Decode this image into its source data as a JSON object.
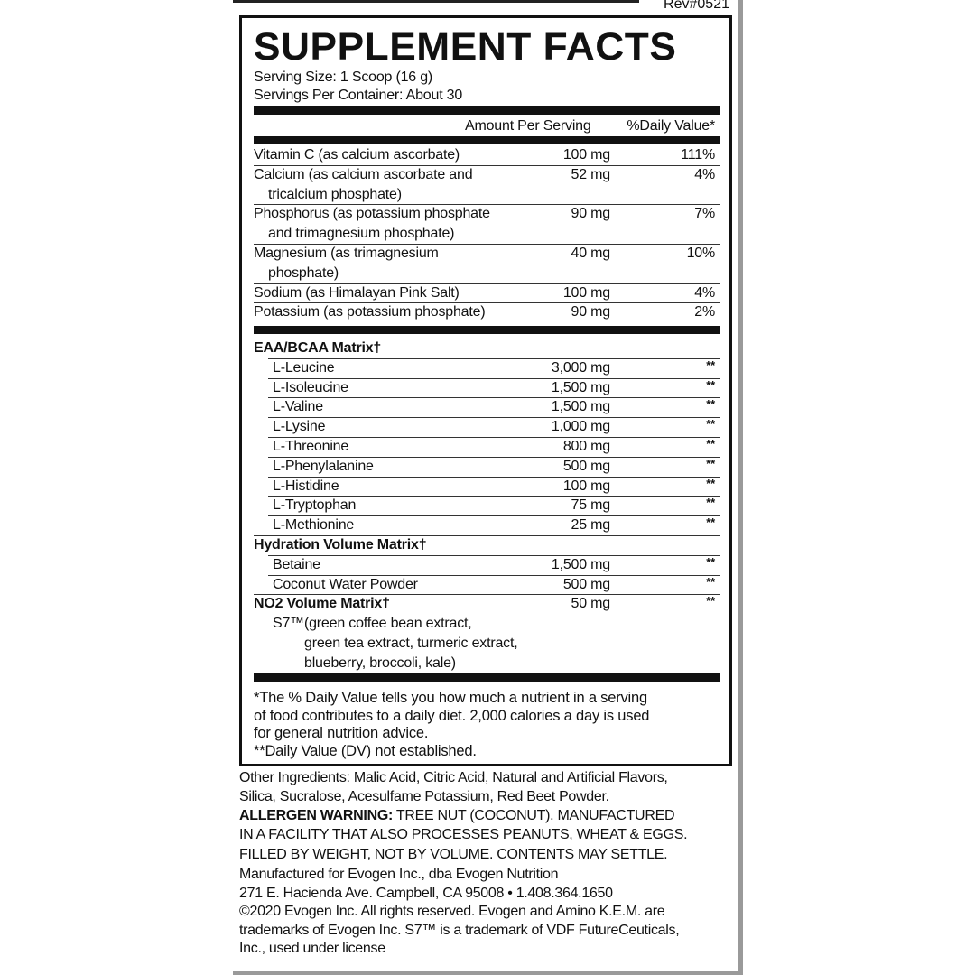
{
  "rev": "Rev#0521",
  "title": "SUPPLEMENT FACTS",
  "serving_size": "Serving Size: 1 Scoop (16 g)",
  "servings_per_container": "Servings Per Container: About 30",
  "header": {
    "amount": "Amount Per Serving",
    "dv": "%Daily Value*"
  },
  "nutrients": [
    {
      "name": [
        "Vitamin C (as calcium ascorbate)"
      ],
      "amount": "100 mg",
      "dv": "111%"
    },
    {
      "name": [
        "Calcium (as calcium ascorbate and",
        "tricalcium phosphate)"
      ],
      "amount": "52 mg",
      "dv": "4%"
    },
    {
      "name": [
        "Phosphorus (as potassium phosphate",
        "and trimagnesium phosphate)"
      ],
      "amount": "90 mg",
      "dv": "7%"
    },
    {
      "name": [
        "Magnesium (as trimagnesium",
        "phosphate)"
      ],
      "amount": "40 mg",
      "dv": "10%"
    },
    {
      "name": [
        "Sodium (as Himalayan Pink Salt)"
      ],
      "amount": "100 mg",
      "dv": "4%"
    },
    {
      "name": [
        "Potassium (as potassium phosphate)"
      ],
      "amount": "90 mg",
      "dv": "2%"
    }
  ],
  "blends": [
    {
      "name": "EAA/BCAA Matrix†",
      "amount": "",
      "dv": "",
      "items": [
        {
          "name": "L-Leucine",
          "amount": "3,000 mg",
          "dv": "**"
        },
        {
          "name": "L-Isoleucine",
          "amount": "1,500 mg",
          "dv": "**"
        },
        {
          "name": "L-Valine",
          "amount": "1,500 mg",
          "dv": "**"
        },
        {
          "name": "L-Lysine",
          "amount": "1,000 mg",
          "dv": "**"
        },
        {
          "name": "L-Threonine",
          "amount": "800 mg",
          "dv": "**"
        },
        {
          "name": "L-Phenylalanine",
          "amount": "500 mg",
          "dv": "**"
        },
        {
          "name": "L-Histidine",
          "amount": "100 mg",
          "dv": "**"
        },
        {
          "name": "L-Tryptophan",
          "amount": "75 mg",
          "dv": "**"
        },
        {
          "name": "L-Methionine",
          "amount": "25 mg",
          "dv": "**"
        }
      ]
    },
    {
      "name": "Hydration Volume Matrix†",
      "amount": "",
      "dv": "",
      "items": [
        {
          "name": "Betaine",
          "amount": "1,500 mg",
          "dv": "**"
        },
        {
          "name": "Coconut Water Powder",
          "amount": "500 mg",
          "dv": "**"
        }
      ]
    },
    {
      "name": "NO2 Volume Matrix†",
      "amount": "50 mg",
      "dv": "**",
      "items": [],
      "description": [
        "S7™(green coffee bean extract,",
        "green tea extract, turmeric extract,",
        "blueberry, broccoli, kale)"
      ]
    }
  ],
  "footnotes": [
    "*The % Daily Value tells you how much a nutrient in a serving",
    "of food contributes to a daily diet. 2,000 calories a day is used",
    "for general nutrition advice.",
    "**Daily Value (DV) not established."
  ],
  "other_ingredients": [
    "Other Ingredients: Malic Acid, Citric Acid, Natural and Artificial Flavors,",
    "Silica, Sucralose, Acesulfame Potassium, Red Beet Powder."
  ],
  "allergen_label": "ALLERGEN WARNING:",
  "allergen_lines": [
    " TREE NUT (COCONUT). MANUFACTURED",
    "IN A FACILITY THAT ALSO PROCESSES PEANUTS, WHEAT & EGGS.",
    "FILLED BY WEIGHT, NOT BY VOLUME. CONTENTS MAY SETTLE."
  ],
  "manufacturer_lines": [
    "Manufactured for Evogen Inc., dba Evogen Nutrition",
    "271 E. Hacienda Ave. Campbell, CA 95008 • 1.408.364.1650",
    "©2020 Evogen Inc. All rights reserved. Evogen and Amino K.E.M. are",
    "trademarks of Evogen Inc. S7™ is a trademark of VDF FutureCeuticals,",
    "Inc., used under license"
  ]
}
